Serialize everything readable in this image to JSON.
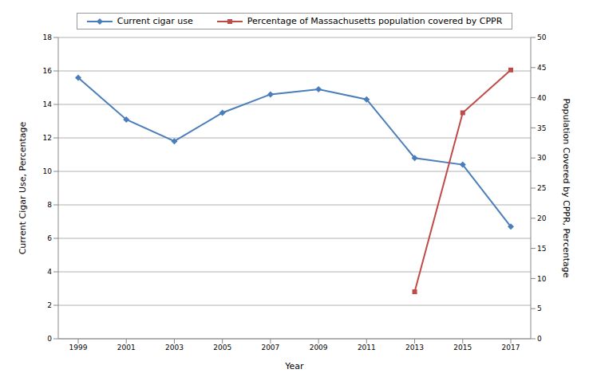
{
  "chart_data": {
    "type": "line",
    "x_label": "Year",
    "y_label": "Current Cigar Use, Percentage",
    "y2_label": "Population Covered by CPPR, Percentage",
    "categories": [
      "1999",
      "2001",
      "2003",
      "2005",
      "2007",
      "2009",
      "2011",
      "2013",
      "2015",
      "2017"
    ],
    "series": [
      {
        "name": "Current cigar use",
        "color": "#4a7ebb",
        "marker": "diamond",
        "line_style": "solid",
        "values": [
          15.6,
          13.1,
          11.8,
          13.5,
          14.6,
          14.9,
          14.3,
          10.8,
          10.4,
          6.7
        ]
      },
      {
        "name": "Percentage of Massachusetts population covered by CPPR",
        "color": "#be4b48",
        "marker": "square",
        "line_style": "solid",
        "axis": "y2",
        "values": [
          null,
          null,
          null,
          null,
          null,
          null,
          null,
          7.8,
          37.5,
          44.6
        ]
      }
    ],
    "ylim": [
      0,
      18
    ],
    "yticks": [
      0,
      2,
      4,
      6,
      8,
      10,
      12,
      14,
      16,
      18
    ],
    "y2lim": [
      0,
      50
    ],
    "y2ticks": [
      0,
      5,
      10,
      15,
      20,
      25,
      30,
      35,
      40,
      45,
      50
    ],
    "grid": true,
    "legend": "top"
  }
}
